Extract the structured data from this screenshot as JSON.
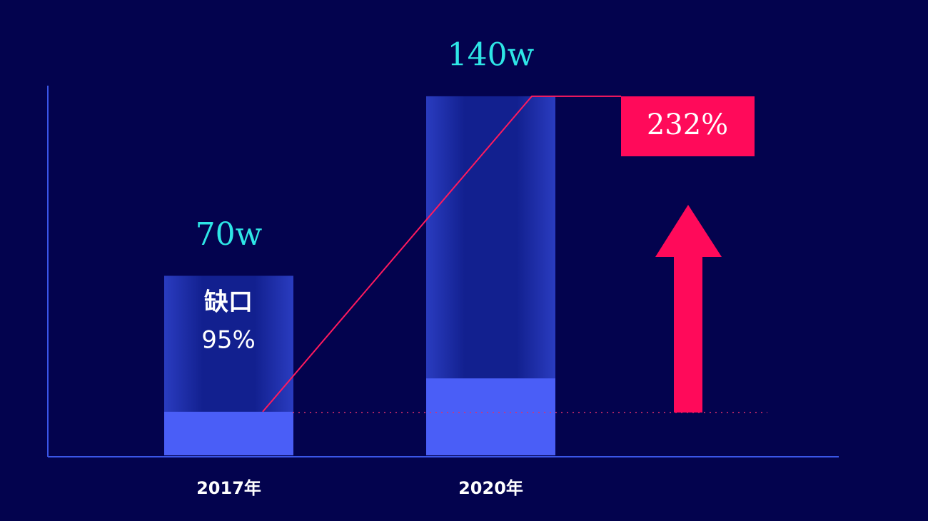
{
  "chart_data": {
    "type": "bar",
    "categories": [
      "2017年",
      "2020年"
    ],
    "values": [
      70,
      140
    ],
    "value_labels": [
      "70w",
      "140w"
    ],
    "fill_values": [
      17,
      30
    ],
    "color": "#1b2aa0",
    "fill_color": "#4a5ef7",
    "ylim": [
      0,
      160
    ],
    "annotations": {
      "gap_label": "缺口",
      "gap_value": "95%",
      "growth": "232%"
    }
  }
}
